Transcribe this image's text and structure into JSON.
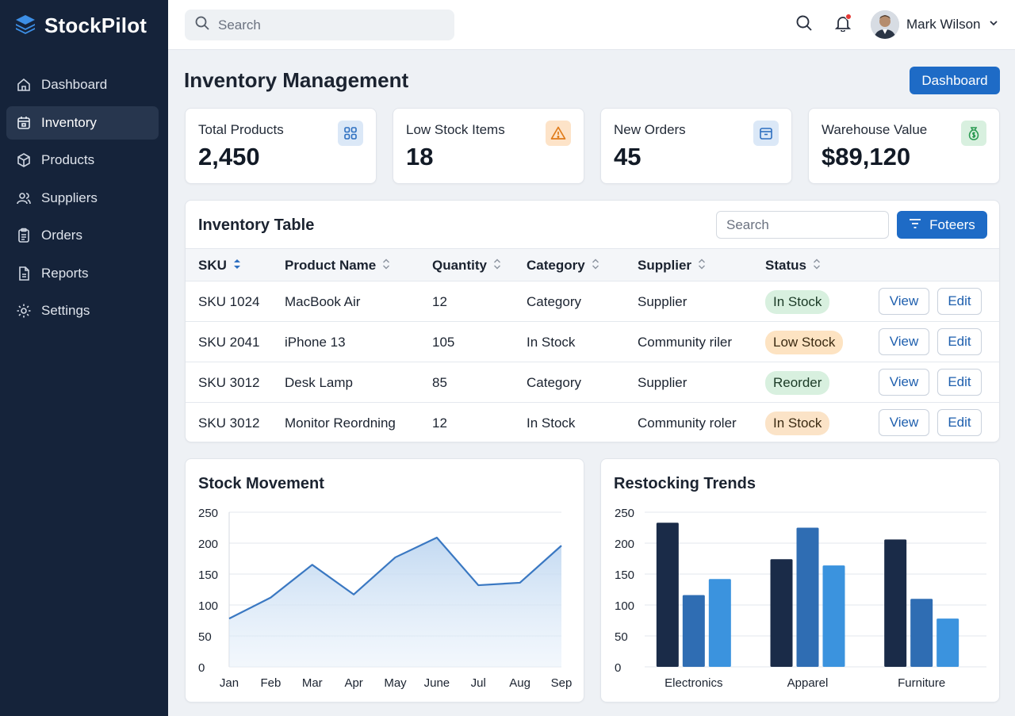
{
  "app": {
    "name": "StockPilot"
  },
  "sidebar": {
    "items": [
      {
        "label": "Dashboard",
        "icon": "home-icon"
      },
      {
        "label": "Inventory",
        "icon": "inventory-icon",
        "active": true
      },
      {
        "label": "Products",
        "icon": "box-icon"
      },
      {
        "label": "Suppliers",
        "icon": "users-icon"
      },
      {
        "label": "Orders",
        "icon": "clipboard-icon"
      },
      {
        "label": "Reports",
        "icon": "report-icon"
      },
      {
        "label": "Settings",
        "icon": "gear-icon"
      }
    ]
  },
  "topbar": {
    "search_placeholder": "Search",
    "user_name": "Mark Wilson"
  },
  "page": {
    "title": "Inventory Management",
    "dashboard_button": "Dashboard"
  },
  "stats": [
    {
      "label": "Total Products",
      "value": "2,450",
      "icon": "grid-icon",
      "color": "#dbe8f7"
    },
    {
      "label": "Low Stock Items",
      "value": "18",
      "icon": "warning-icon",
      "color": "#fde3c8"
    },
    {
      "label": "New Orders",
      "value": "45",
      "icon": "order-box-icon",
      "color": "#dbe8f7"
    },
    {
      "label": "Warehouse Value",
      "value": "$89,120",
      "icon": "money-bag-icon",
      "color": "#d8f0df"
    }
  ],
  "table": {
    "title": "Inventory Table",
    "search_placeholder": "Search",
    "filter_label": "Foteers",
    "columns": [
      "SKU",
      "Product Name",
      "Quantity",
      "Category",
      "Supplier",
      "Status"
    ],
    "rows": [
      {
        "sku": "SKU 1024",
        "name": "MacBook Air",
        "qty": "12",
        "category": "Category",
        "supplier": "Supplier",
        "status": "In Stock",
        "status_style": "green"
      },
      {
        "sku": "SKU 2041",
        "name": "iPhone 13",
        "qty": "105",
        "category": "In Stock",
        "supplier": "Community riler",
        "status": "Low Stock",
        "status_style": "orange"
      },
      {
        "sku": "SKU 3012",
        "name": "Desk Lamp",
        "qty": "85",
        "category": "Category",
        "supplier": "Supplier",
        "status": "Reorder",
        "status_style": "green"
      },
      {
        "sku": "SKU 3012",
        "name": "Monitor Reordning",
        "qty": "12",
        "category": "In Stock",
        "supplier": "Community roler",
        "status": "In Stock",
        "status_style": "sand"
      }
    ],
    "view_label": "View",
    "edit_label": "Edit"
  },
  "chart_data": [
    {
      "type": "area",
      "title": "Stock Movement",
      "categories": [
        "Jan",
        "Feb",
        "Mar",
        "Apr",
        "May",
        "June",
        "Jul",
        "Aug",
        "Sep"
      ],
      "values": [
        78,
        112,
        165,
        117,
        177,
        209,
        132,
        136,
        196
      ],
      "ylim": [
        0,
        250
      ],
      "yticks": [
        0,
        50,
        100,
        150,
        200,
        250
      ],
      "grid": true,
      "color": "#3a78c2"
    },
    {
      "type": "bar",
      "title": "Restocking Trends",
      "categories": [
        "Electronics",
        "Apparel",
        "Furniture"
      ],
      "series": [
        {
          "values": [
            233,
            174,
            206
          ],
          "color": "#1a2b48"
        },
        {
          "values": [
            116,
            225,
            110
          ],
          "color": "#2f6db3"
        },
        {
          "values": [
            142,
            164,
            78
          ],
          "color": "#3b93de"
        }
      ],
      "ylim": [
        0,
        250
      ],
      "yticks": [
        0,
        50,
        100,
        150,
        200,
        250
      ],
      "grid": true
    }
  ]
}
